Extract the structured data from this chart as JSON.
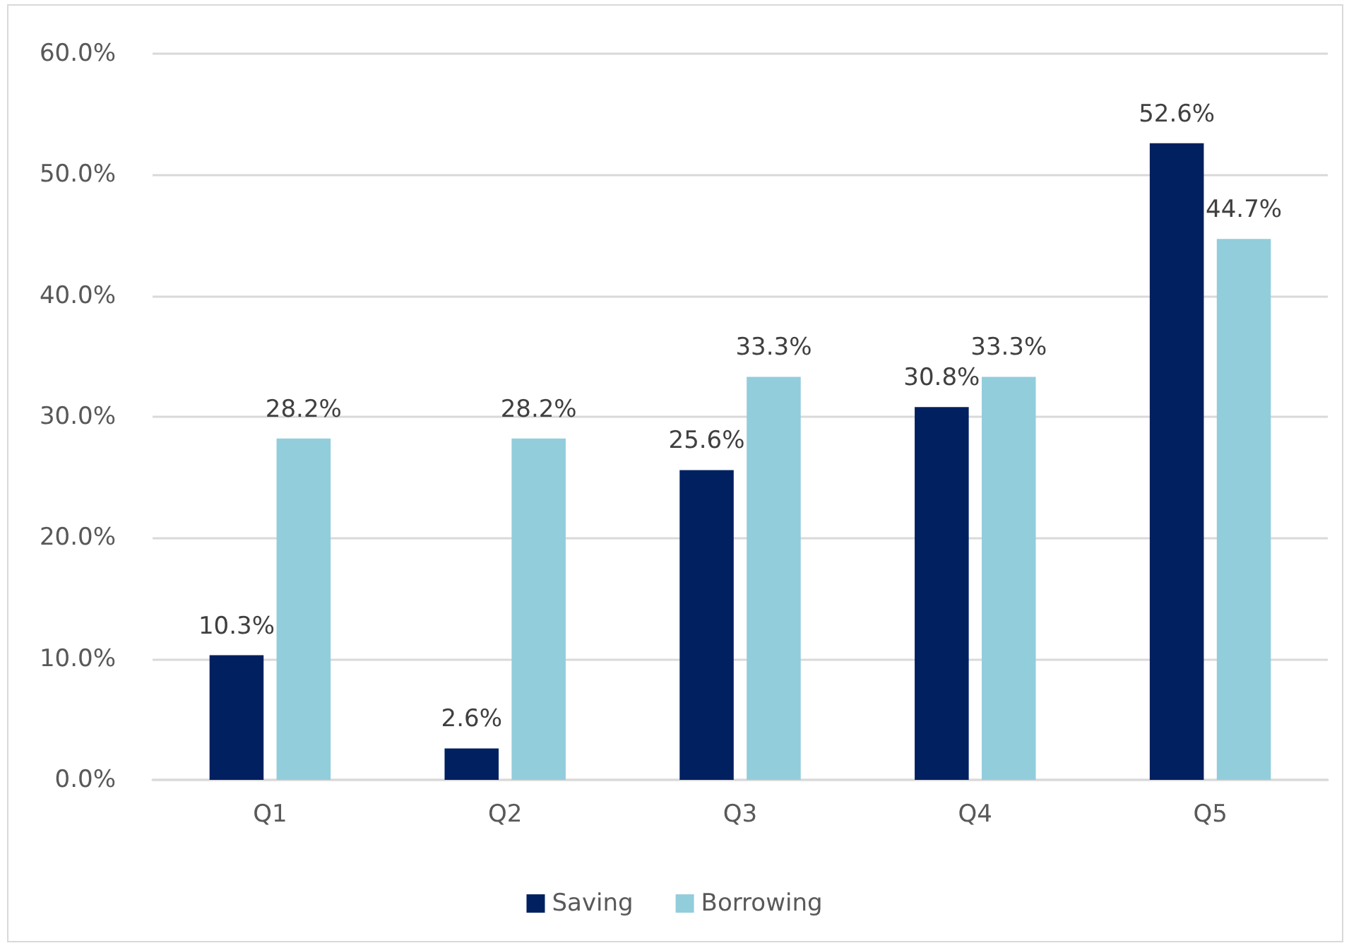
{
  "chart_data": {
    "type": "bar",
    "categories": [
      "Q1",
      "Q2",
      "Q3",
      "Q4",
      "Q5"
    ],
    "series": [
      {
        "name": "Saving",
        "color": "#002060",
        "values": [
          10.3,
          2.6,
          25.6,
          30.8,
          52.6
        ],
        "value_labels": [
          "10.3%",
          "2.6%",
          "25.6%",
          "30.8%",
          "52.6%"
        ]
      },
      {
        "name": "Borrowing",
        "color": "#92cddc",
        "values": [
          28.2,
          28.2,
          33.3,
          33.3,
          44.7
        ],
        "value_labels": [
          "28.2%",
          "28.2%",
          "33.3%",
          "33.3%",
          "44.7%"
        ]
      }
    ],
    "ylim": [
      0,
      60
    ],
    "yticks": [
      {
        "value": 0,
        "label": "0.0%"
      },
      {
        "value": 10,
        "label": "10.0%"
      },
      {
        "value": 20,
        "label": "20.0%"
      },
      {
        "value": 30,
        "label": "30.0%"
      },
      {
        "value": 40,
        "label": "40.0%"
      },
      {
        "value": 50,
        "label": "50.0%"
      },
      {
        "value": 60,
        "label": "60.0%"
      }
    ],
    "grid": "y",
    "legend": "bottom"
  }
}
